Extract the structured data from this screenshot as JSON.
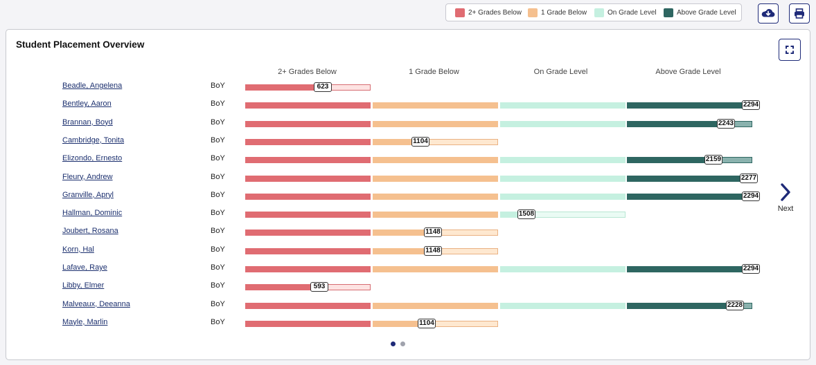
{
  "legend": [
    {
      "label": "2+ Grades Below",
      "color": "#e06c72"
    },
    {
      "label": "1 Grade Below",
      "color": "#f5c08f"
    },
    {
      "label": "On Grade Level",
      "color": "#c5f0e0"
    },
    {
      "label": "Above Grade Level",
      "color": "#2e6661"
    }
  ],
  "toolbar": {
    "download_icon": "cloud-download-icon",
    "print_icon": "printer-icon"
  },
  "card": {
    "title": "Student Placement Overview",
    "expand_icon": "expand-icon"
  },
  "pager": {
    "next_label": "Next",
    "current_page": 1,
    "total_pages": 2
  },
  "chart_data": {
    "type": "bar",
    "orientation": "horizontal",
    "columns": [
      "2+ Grades Below",
      "1 Grade Below",
      "On Grade Level",
      "Above Grade Level"
    ],
    "colors": {
      "full": [
        "#e06c72",
        "#f5c08f",
        "#c5f0e0",
        "#2e6661"
      ],
      "light": [
        "#fde3e2",
        "#fee8d0",
        "#eafbf4",
        "#8ab2ae"
      ],
      "border": [
        "#d66c72",
        "#eab182",
        "#b8e6d3",
        "#2e6661"
      ]
    },
    "students": [
      {
        "name": "Beadle, Angelena",
        "period": "BoY",
        "level": 0,
        "fraction": 0.62,
        "score": "623"
      },
      {
        "name": "Bentley, Aaron",
        "period": "BoY",
        "level": 3,
        "fraction": 0.99,
        "score": "2294"
      },
      {
        "name": "Brannan, Boyd",
        "period": "BoY",
        "level": 3,
        "fraction": 0.79,
        "score": "2243"
      },
      {
        "name": "Cambridge, Tonita",
        "period": "BoY",
        "level": 1,
        "fraction": 0.38,
        "score": "1104"
      },
      {
        "name": "Elizondo, Ernesto",
        "period": "BoY",
        "level": 3,
        "fraction": 0.69,
        "score": "2159"
      },
      {
        "name": "Fleury, Andrew",
        "period": "BoY",
        "level": 3,
        "fraction": 0.97,
        "score": "2277"
      },
      {
        "name": "Granville, Apryl",
        "period": "BoY",
        "level": 3,
        "fraction": 0.99,
        "score": "2294"
      },
      {
        "name": "Hallman, Dominic",
        "period": "BoY",
        "level": 2,
        "fraction": 0.21,
        "score": "1508"
      },
      {
        "name": "Joubert, Rosana",
        "period": "BoY",
        "level": 1,
        "fraction": 0.48,
        "score": "1148"
      },
      {
        "name": "Korn, Hal",
        "period": "BoY",
        "level": 1,
        "fraction": 0.48,
        "score": "1148"
      },
      {
        "name": "Lafave, Raye",
        "period": "BoY",
        "level": 3,
        "fraction": 0.99,
        "score": "2294"
      },
      {
        "name": "Libby, Elmer",
        "period": "BoY",
        "level": 0,
        "fraction": 0.59,
        "score": "593"
      },
      {
        "name": "Malveaux, Deeanna",
        "period": "BoY",
        "level": 3,
        "fraction": 0.86,
        "score": "2228"
      },
      {
        "name": "Mayle, Marlin",
        "period": "BoY",
        "level": 1,
        "fraction": 0.43,
        "score": "1104"
      }
    ]
  }
}
